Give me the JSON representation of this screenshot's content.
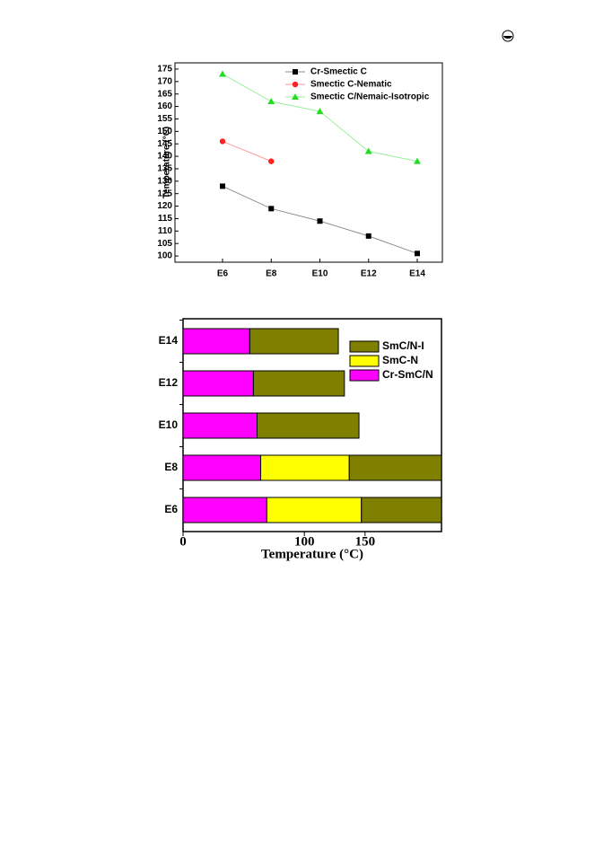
{
  "chart_data": [
    {
      "type": "line",
      "ylabel": "Temperature (°C)",
      "categories": [
        "E6",
        "E8",
        "E10",
        "E12",
        "E14"
      ],
      "series": [
        {
          "name": "Cr-Smectic C",
          "color": "#000000",
          "marker": "square",
          "values": [
            128,
            119,
            114,
            108,
            101
          ]
        },
        {
          "name": "Smectic C-Nematic",
          "color": "#ff2020",
          "marker": "circle",
          "values": [
            146,
            138,
            null,
            null,
            null
          ]
        },
        {
          "name": "Smectic C/Nemaic-Isotropic",
          "color": "#22dd22",
          "marker": "triangle",
          "values": [
            173,
            162,
            158,
            142,
            138
          ]
        }
      ],
      "ylim": [
        97.5,
        177.5
      ],
      "yticks": [
        100,
        105,
        110,
        115,
        120,
        125,
        130,
        135,
        140,
        145,
        150,
        155,
        160,
        165,
        170,
        175
      ]
    },
    {
      "type": "stacked-barh",
      "xlabel": "Temperature (°C)",
      "categories": [
        "E6",
        "E8",
        "E10",
        "E12",
        "E14"
      ],
      "series": [
        {
          "name": "Cr-SmC/N",
          "color": "#ff00ff",
          "values": [
            69,
            64,
            61,
            58,
            55
          ]
        },
        {
          "name": "SmC-N",
          "color": "#ffff00",
          "values": [
            78,
            73,
            null,
            null,
            null
          ]
        },
        {
          "name": "SmC/N-I",
          "color": "#808000",
          "values": [
            66,
            76,
            84,
            75,
            73
          ]
        }
      ],
      "xlim": [
        0,
        213
      ],
      "xticks": [
        0,
        100,
        150
      ]
    }
  ]
}
